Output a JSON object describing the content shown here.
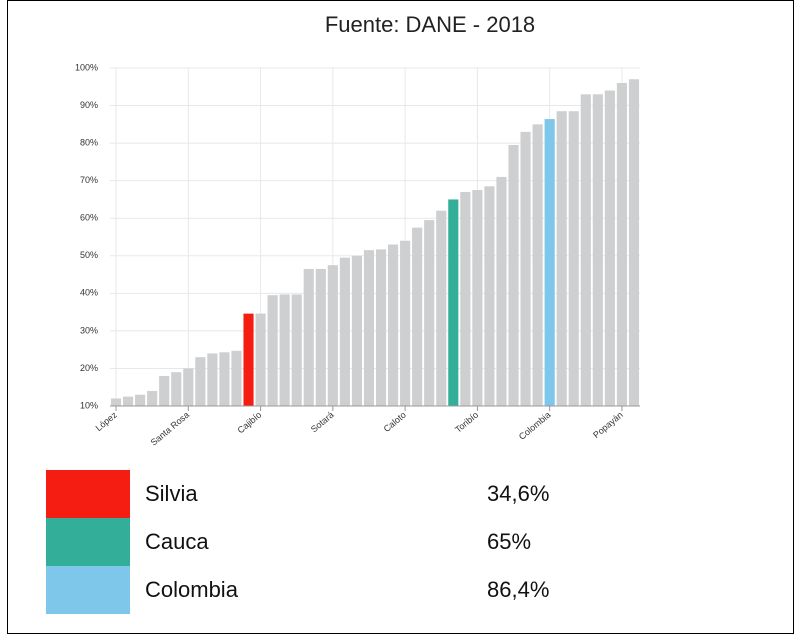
{
  "chart_data": {
    "type": "bar",
    "title": "Fuente: DANE - 2018",
    "categories": [
      "López",
      null,
      null,
      null,
      null,
      null,
      "Santa Rosa",
      null,
      null,
      null,
      null,
      null,
      "Cajibío",
      null,
      null,
      null,
      null,
      null,
      "Sotará",
      null,
      null,
      null,
      null,
      null,
      "Caloto",
      null,
      null,
      null,
      null,
      null,
      "Toribío",
      null,
      null,
      null,
      null,
      null,
      "Colombia",
      null,
      null,
      null,
      null,
      null,
      "Popayán",
      null
    ],
    "values": [
      12,
      12.5,
      13,
      14,
      18,
      19,
      20,
      23,
      24,
      24.3,
      24.7,
      34.6,
      34.6,
      39.5,
      39.7,
      39.7,
      46.5,
      46.5,
      47.5,
      49.5,
      50,
      51.5,
      51.7,
      53,
      54,
      57.5,
      59.5,
      62,
      65,
      67,
      67.5,
      68.5,
      71,
      79.5,
      83,
      85,
      86.4,
      88.5,
      88.5,
      93,
      93,
      94,
      96,
      97
    ],
    "colors": [
      "#cdcfd0",
      "#cdcfd0",
      "#cdcfd0",
      "#cdcfd0",
      "#cdcfd0",
      "#cdcfd0",
      "#cdcfd0",
      "#cdcfd0",
      "#cdcfd0",
      "#cdcfd0",
      "#cdcfd0",
      "#f51d12",
      "#cdcfd0",
      "#cdcfd0",
      "#cdcfd0",
      "#cdcfd0",
      "#cdcfd0",
      "#cdcfd0",
      "#cdcfd0",
      "#cdcfd0",
      "#cdcfd0",
      "#cdcfd0",
      "#cdcfd0",
      "#cdcfd0",
      "#cdcfd0",
      "#cdcfd0",
      "#cdcfd0",
      "#cdcfd0",
      "#33ae98",
      "#cdcfd0",
      "#cdcfd0",
      "#cdcfd0",
      "#cdcfd0",
      "#cdcfd0",
      "#cdcfd0",
      "#cdcfd0",
      "#7ec6ea",
      "#cdcfd0",
      "#cdcfd0",
      "#cdcfd0",
      "#cdcfd0",
      "#cdcfd0",
      "#cdcfd0",
      "#cdcfd0"
    ],
    "ylim": [
      10,
      100
    ],
    "yticks": [
      {
        "value": 10,
        "label": "10%"
      },
      {
        "value": 20,
        "label": "20%"
      },
      {
        "value": 30,
        "label": "30%"
      },
      {
        "value": 40,
        "label": "40%"
      },
      {
        "value": 50,
        "label": "50%"
      },
      {
        "value": 60,
        "label": "60%"
      },
      {
        "value": 70,
        "label": "70%"
      },
      {
        "value": 80,
        "label": "80%"
      },
      {
        "value": 90,
        "label": "90%"
      },
      {
        "value": 100,
        "label": "100%"
      }
    ],
    "grid": true,
    "legend": [
      {
        "name": "Silvia",
        "color": "#f51d12",
        "label": "34,6%"
      },
      {
        "name": "Cauca",
        "color": "#33ae98",
        "label": "65%"
      },
      {
        "name": "Colombia",
        "color": "#7ec6ea",
        "label": "86,4%"
      }
    ]
  }
}
